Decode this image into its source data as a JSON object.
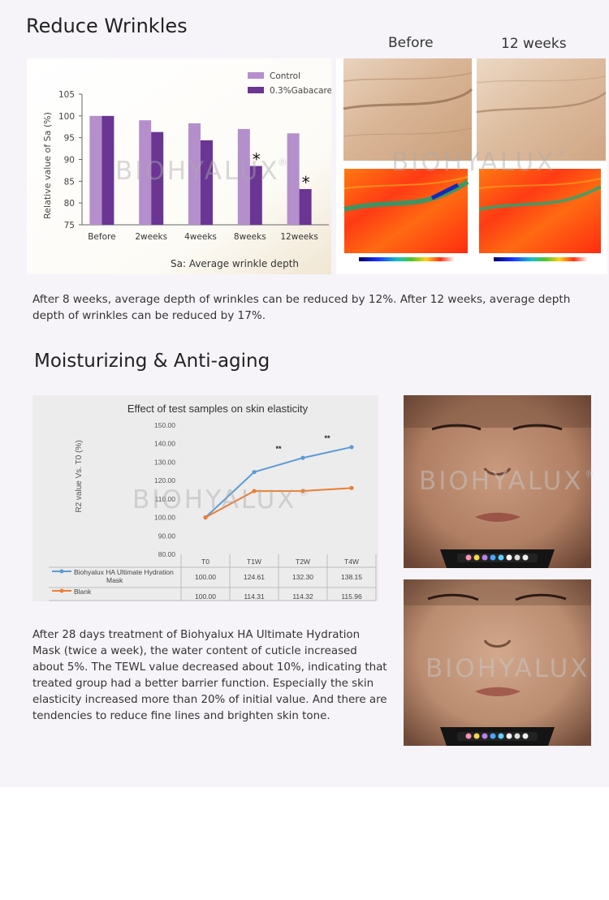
{
  "section1": {
    "title": "Reduce Wrinkles",
    "before_label": "Before",
    "after_label": "12 weeks",
    "paragraph": "After 8 weeks, average depth of wrinkles can be reduced by 12%. After 12 weeks, average depth depth of wrinkles can be reduced by 17%."
  },
  "section2": {
    "title": "Moisturizing & Anti-aging",
    "paragraph": "After 28 days treatment of Biohyalux HA Ultimate Hydration Mask (twice a week), the water content of cuticle increased about 5%. The TEWL value decreased about 10%, indicating that treated group had a better barrier function. Especially the skin elasticity increased more than 20% of initial value. And there are tendencies to reduce fine lines and brighten skin tone."
  },
  "watermark": "BIOHYALUX",
  "watermark_mark": "®",
  "colors": {
    "control": "#b48fcc",
    "gabacare": "#6a3593",
    "ha_mask": "#5b9bd5",
    "blank": "#ed7d31"
  },
  "chart_data": [
    {
      "type": "bar",
      "title": "",
      "xlabel": "Sa: Average wrinkle depth",
      "ylabel": "Relative value of Sa (%)",
      "ylim": [
        75,
        105
      ],
      "yticks": [
        75,
        80,
        85,
        90,
        95,
        100,
        105
      ],
      "categories": [
        "Before",
        "2weeks",
        "4weeks",
        "8weeks",
        "12weeks"
      ],
      "series": [
        {
          "name": "Control",
          "values": [
            100,
            99,
            98.3,
            97,
            96
          ]
        },
        {
          "name": "0.3%Gabacare",
          "values": [
            100,
            96.3,
            94.4,
            88.5,
            83.2
          ]
        }
      ],
      "annotations": [
        {
          "category": "8weeks",
          "text": "*"
        },
        {
          "category": "12weeks",
          "text": "*"
        }
      ],
      "legend": "top-right",
      "grid": false
    },
    {
      "type": "line",
      "title": "Effect of test samples on skin elasticity",
      "xlabel": "",
      "ylabel": "R2 value Vs. T0 (%)",
      "ylim": [
        80,
        150
      ],
      "yticks": [
        "80.00",
        "90.00",
        "100.00",
        "110.00",
        "120.00",
        "130.00",
        "140.00",
        "150.00"
      ],
      "x": [
        "T0",
        "T1W",
        "T2W",
        "T4W"
      ],
      "series": [
        {
          "name": "Biohyalux HA Ultimate Hydration Mask",
          "values": [
            100.0,
            124.61,
            132.3,
            138.15
          ],
          "labels": [
            "100.00",
            "124.61",
            "132.30",
            "138.15"
          ]
        },
        {
          "name": "Blank",
          "values": [
            100.0,
            114.31,
            114.32,
            115.96
          ],
          "labels": [
            "100.00",
            "114.31",
            "114.32",
            "115.96"
          ]
        }
      ],
      "annotations": [
        {
          "x": "T2W",
          "text": "**"
        },
        {
          "x": "T4W",
          "text": "**"
        }
      ],
      "legend": "bottom data table",
      "grid": false
    }
  ]
}
